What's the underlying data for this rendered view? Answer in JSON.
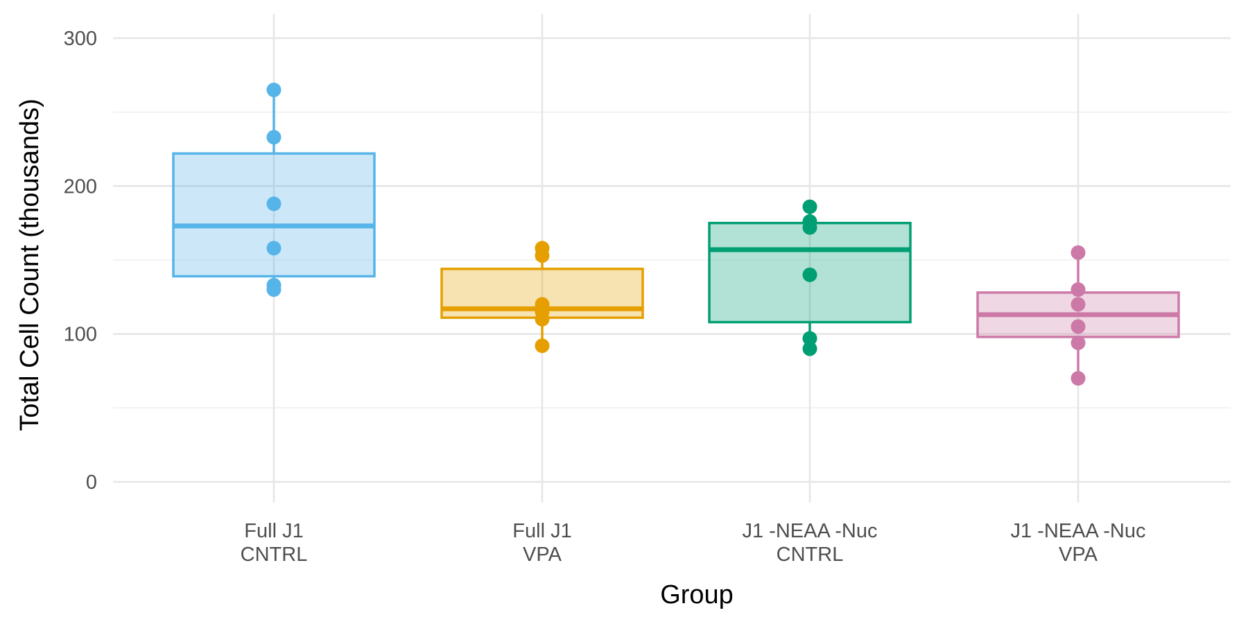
{
  "chart_data": {
    "type": "box",
    "title": "",
    "xlabel": "Group",
    "ylabel": "Total Cell Count (thousands)",
    "ylim": [
      -10,
      310
    ],
    "yticks": [
      0,
      100,
      200,
      300
    ],
    "grid": true,
    "legend": "none",
    "categories": [
      {
        "line1": "Full J1",
        "line2": "CNTRL"
      },
      {
        "line1": "Full J1",
        "line2": "VPA"
      },
      {
        "line1": "J1 -NEAA -Nuc",
        "line2": "CNTRL"
      },
      {
        "line1": "J1 -NEAA -Nuc",
        "line2": "VPA"
      }
    ],
    "series": [
      {
        "color": "#56B4E9",
        "box": {
          "lower": 139,
          "median": 173,
          "upper": 222,
          "whisker_low": 130,
          "whisker_high": 265
        },
        "points": [
          265,
          233,
          188,
          158,
          133,
          130
        ]
      },
      {
        "color": "#E69F00",
        "box": {
          "lower": 111,
          "median": 117,
          "upper": 144,
          "whisker_low": 92,
          "whisker_high": 158
        },
        "points": [
          158,
          153,
          120,
          115,
          110,
          92
        ]
      },
      {
        "color": "#009E73",
        "box": {
          "lower": 108,
          "median": 157,
          "upper": 175,
          "whisker_low": 90,
          "whisker_high": 186
        },
        "points": [
          186,
          176,
          172,
          140,
          97,
          90
        ]
      },
      {
        "color": "#CC79A7",
        "box": {
          "lower": 98,
          "median": 113,
          "upper": 128,
          "whisker_low": 70,
          "whisker_high": 155
        },
        "points": [
          155,
          130,
          120,
          105,
          94,
          70
        ]
      }
    ]
  }
}
